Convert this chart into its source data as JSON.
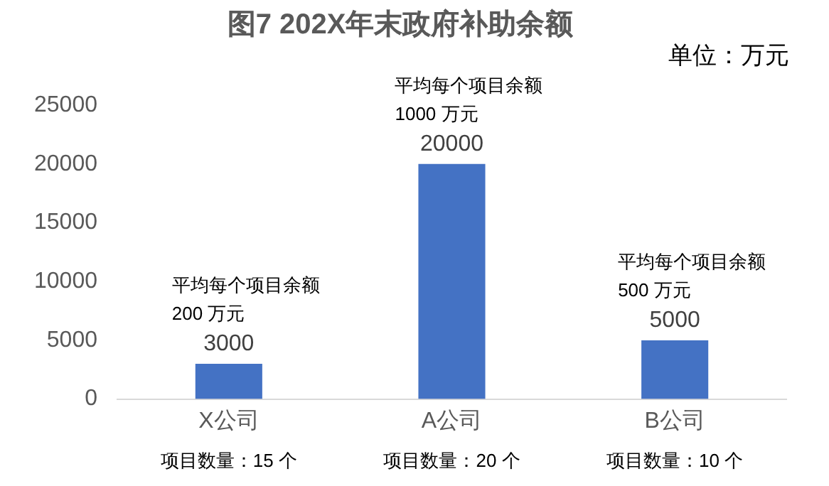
{
  "chart_data": {
    "type": "bar",
    "title": "图7 202X年末政府补助余额",
    "categories": [
      "X公司",
      "A公司",
      "B公司"
    ],
    "values": [
      3000,
      20000,
      5000
    ],
    "color": "#4472c4",
    "ylim": [
      0,
      25000
    ],
    "yticks": [
      0,
      5000,
      10000,
      15000,
      20000,
      25000
    ],
    "grid": false,
    "legend": false,
    "data_labels": true,
    "annotations": [
      "单位：万元",
      {
        "text": "平均每个项目余额\n200 万元",
        "x": "X公司",
        "y": 3000
      },
      {
        "text": "平均每个项目余额\n1000 万元",
        "x": "A公司",
        "y": 20000
      },
      {
        "text": "平均每个项目余额\n500 万元",
        "x": "B公司",
        "y": 5000
      },
      "项目数量：15 个",
      "项目数量：20 个",
      "项目数量：10 个"
    ]
  }
}
